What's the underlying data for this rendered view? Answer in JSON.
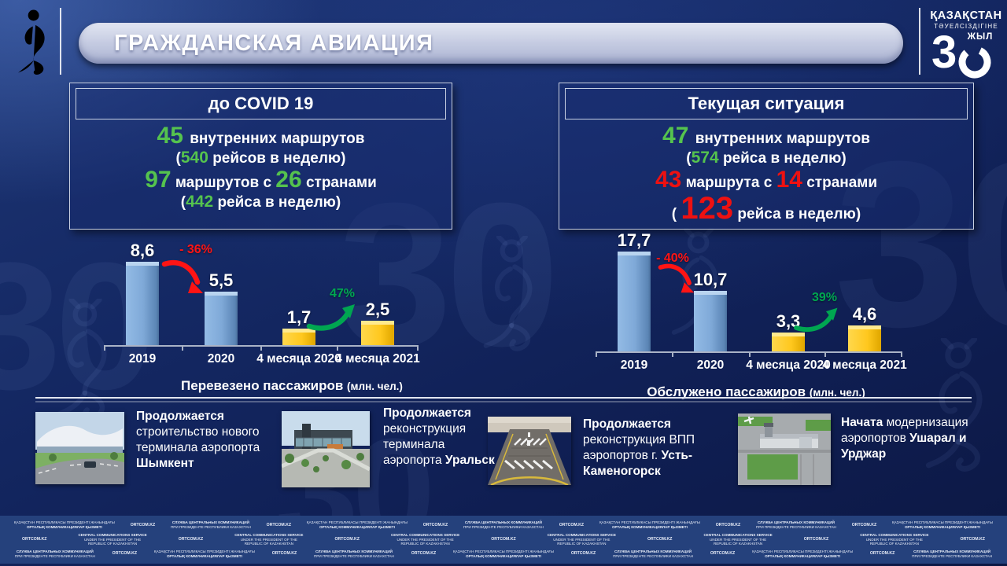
{
  "slide": {
    "title": "ГРАЖДАНСКАЯ АВИАЦИЯ"
  },
  "independence_logo": {
    "country": "ҚАЗАҚСТАН",
    "subtitle": "ТӘУЕЛСІЗДІГІНЕ",
    "digit": "3",
    "years": "ЖЫЛ"
  },
  "icons": {
    "emblem": "snow-leopard-ornament",
    "logo": "30-years-independence-logo"
  },
  "colors": {
    "background": "#13265e",
    "green": "#55c34e",
    "red": "#ee1111",
    "bar_blue": "#7fa9d8",
    "bar_yellow": "#ffc81e",
    "footer_strip": "#25417c",
    "banner_silver": "#c6cce2"
  },
  "panels": [
    {
      "header": "до COVID 19",
      "lines": [
        [
          {
            "t": "45 ",
            "c": "green",
            "s": "lg"
          },
          {
            "t": "внутренних маршрутов"
          }
        ],
        [
          {
            "t": "("
          },
          {
            "t": "540",
            "c": "green",
            "s": "md"
          },
          {
            "t": " рейсов в неделю)"
          }
        ],
        [
          {
            "t": "97",
            "c": "green",
            "s": "lg"
          },
          {
            "t": " маршрутов с "
          },
          {
            "t": "26",
            "c": "green",
            "s": "lg"
          },
          {
            "t": " странами"
          }
        ],
        [
          {
            "t": "("
          },
          {
            "t": "442",
            "c": "green",
            "s": "md"
          },
          {
            "t": " рейса в неделю)"
          }
        ]
      ]
    },
    {
      "header": "Текущая ситуация",
      "lines": [
        [
          {
            "t": "47 ",
            "c": "green",
            "s": "lg"
          },
          {
            "t": "внутренних маршрутов"
          }
        ],
        [
          {
            "t": "("
          },
          {
            "t": "574",
            "c": "green",
            "s": "md"
          },
          {
            "t": " рейса в неделю)"
          }
        ],
        [
          {
            "t": "43",
            "c": "red",
            "s": "lg"
          },
          {
            "t": " маршрута с "
          },
          {
            "t": "14",
            "c": "red",
            "s": "lg"
          },
          {
            "t": " странами"
          }
        ],
        [
          {
            "t": "( "
          },
          {
            "t": "123",
            "c": "red",
            "s": "xl"
          },
          {
            "t": " рейса в неделю)"
          }
        ]
      ]
    }
  ],
  "chart_data": [
    {
      "type": "bar",
      "title": "Перевезено пассажиров",
      "units": "(млн. чел.)",
      "categories": [
        "2019",
        "2020",
        "4 месяца 2020",
        "4 месяца 2021"
      ],
      "values": [
        8.6,
        5.5,
        1.7,
        2.5
      ],
      "value_labels": [
        "8,6",
        "5,5",
        "1,7",
        "2,5"
      ],
      "bar_colors": [
        "blue",
        "blue",
        "yellow",
        "yellow"
      ],
      "ylim": [
        0,
        9
      ],
      "annotations": [
        {
          "text": "- 36%",
          "color": "#ff1414",
          "direction": "down",
          "between": [
            "2019",
            "2020"
          ]
        },
        {
          "text": "47%",
          "color": "#00a651",
          "direction": "up",
          "between": [
            "4 месяца 2020",
            "4 месяца 2021"
          ]
        }
      ]
    },
    {
      "type": "bar",
      "title": "Обслужено пассажиров",
      "units": "(млн. чел.)",
      "categories": [
        "2019",
        "2020",
        "4 месяца 2020",
        "4 месяца 2021"
      ],
      "values": [
        17.7,
        10.7,
        3.3,
        4.6
      ],
      "value_labels": [
        "17,7",
        "10,7",
        "3,3",
        "4,6"
      ],
      "bar_colors": [
        "blue",
        "blue",
        "yellow",
        "yellow"
      ],
      "ylim": [
        0,
        18
      ],
      "annotations": [
        {
          "text": "- 40%",
          "color": "#ff1414",
          "direction": "down",
          "between": [
            "2019",
            "2020"
          ]
        },
        {
          "text": "39%",
          "color": "#00a651",
          "direction": "up",
          "between": [
            "4 месяца 2020",
            "4 месяца 2021"
          ]
        }
      ]
    }
  ],
  "projects": [
    {
      "photo": "shymkent-new-terminal-photo",
      "segments": [
        {
          "t": "Продолжается",
          "b": true
        },
        {
          "t": " строительство нового терминала аэропорта ",
          "b": false
        },
        {
          "t": "Шымкент",
          "b": true
        }
      ]
    },
    {
      "photo": "uralsk-terminal-photo",
      "segments": [
        {
          "t": "Продолжается",
          "b": true
        },
        {
          "t": " реконструкция терминала аэропорта ",
          "b": false
        },
        {
          "t": "Уральск",
          "b": true
        }
      ]
    },
    {
      "photo": "ust-kamenogorsk-runway-photo",
      "segments": [
        {
          "t": "Продолжается",
          "b": true
        },
        {
          "t": " реконструкция ВПП аэропортов г. ",
          "b": false
        },
        {
          "t": "Усть-Каменогорск",
          "b": true
        }
      ]
    },
    {
      "photo": "usharal-urdzhar-airport-photo",
      "segments": [
        {
          "t": "Начата",
          "b": true
        },
        {
          "t": " модернизация аэропортов ",
          "b": false
        },
        {
          "t": "Ушарал и Урджар",
          "b": true
        }
      ]
    }
  ],
  "footer": {
    "texts": {
      "kz_line1": "ҚАЗАҚСТАН РЕСПУБЛИКАСЫ ПРЕЗИДЕНТІ ЖАНЫНДАҒЫ",
      "kz_line2": "ОРТАЛЫҚ КОММУНИКАЦИЯЛАР ҚЫЗМЕТІ",
      "ru_line1": "СЛУЖБА ЦЕНТРАЛЬНЫХ КОММУНИКАЦИЙ",
      "ru_line2": "ПРИ ПРЕЗИДЕНТЕ РЕСПУБЛИКИ КАЗАХСТАН",
      "en_line1": "CENTRAL COMMUNICATIONS SERVICE",
      "en_line2": "UNDER THE PRESIDENT OF THE",
      "en_line3": "REPUBLIC OF KAZAKHSTAN",
      "ortcom": "ORTCOM.KZ"
    },
    "rows": [
      [
        "kz",
        "ort",
        "ru",
        "ort",
        "kz",
        "ort",
        "ru",
        "ort",
        "kz",
        "ort",
        "ru",
        "ort",
        "kz"
      ],
      [
        "ort",
        "en",
        "ort",
        "en",
        "ort",
        "en",
        "ort",
        "en",
        "ort",
        "en",
        "ort",
        "en",
        "ort"
      ],
      [
        "ru",
        "ort",
        "kz",
        "ort",
        "ru",
        "ort",
        "kz",
        "ort",
        "ru",
        "ort",
        "kz",
        "ort",
        "ru"
      ]
    ]
  }
}
